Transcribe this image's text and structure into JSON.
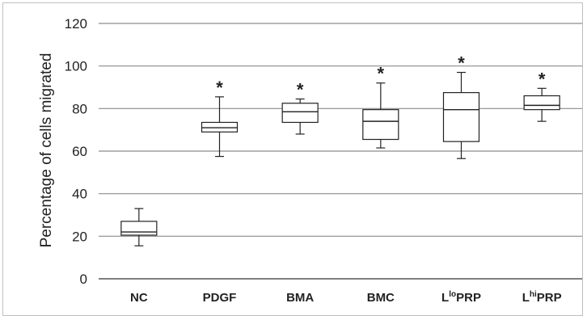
{
  "chart_data": {
    "type": "box",
    "title": "",
    "xlabel": "",
    "ylabel": "Percentage of cells migrated",
    "ylim": [
      0,
      120
    ],
    "yticks": [
      0,
      20,
      40,
      60,
      80,
      100,
      120
    ],
    "grid": true,
    "legend": "none",
    "categories": [
      {
        "base": "NC",
        "sup": ""
      },
      {
        "base": "PDGF",
        "sup": ""
      },
      {
        "base": "BMA",
        "sup": ""
      },
      {
        "base": "BMC",
        "sup": ""
      },
      {
        "base": "L",
        "sup": "lo",
        "rest": "PRP"
      },
      {
        "base": "L",
        "sup": "hi",
        "rest": "PRP"
      }
    ],
    "boxes": [
      {
        "min": 15.5,
        "q1": 20.5,
        "median": 22,
        "q3": 27,
        "max": 33,
        "star": false
      },
      {
        "min": 57.5,
        "q1": 69,
        "median": 71,
        "q3": 73.5,
        "max": 85.5,
        "star": true
      },
      {
        "min": 68,
        "q1": 73.5,
        "median": 78.5,
        "q3": 82.5,
        "max": 84.5,
        "star": true
      },
      {
        "min": 61.5,
        "q1": 65.5,
        "median": 74,
        "q3": 79.5,
        "max": 92,
        "star": true
      },
      {
        "min": 56.5,
        "q1": 64.5,
        "median": 79.5,
        "q3": 87.5,
        "max": 97,
        "star": true
      },
      {
        "min": 74,
        "q1": 79.5,
        "median": 81.5,
        "q3": 86,
        "max": 89.5,
        "star": true
      }
    ],
    "annotation": "*"
  }
}
